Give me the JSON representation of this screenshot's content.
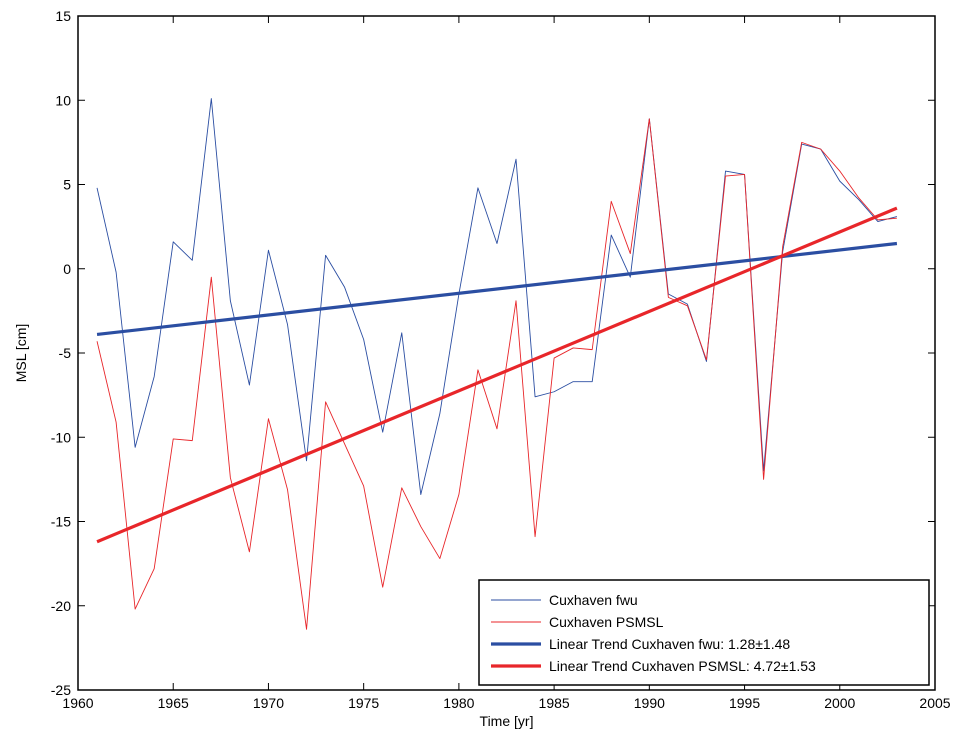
{
  "chart_data": {
    "type": "line",
    "title": "",
    "xlabel": "Time [yr]",
    "ylabel": "MSL [cm]",
    "xlim": [
      1960,
      2005
    ],
    "ylim": [
      -25,
      15
    ],
    "xticks": [
      1960,
      1965,
      1970,
      1975,
      1980,
      1985,
      1990,
      1995,
      2000,
      2005
    ],
    "yticks": [
      -25,
      -20,
      -15,
      -10,
      -5,
      0,
      5,
      10,
      15
    ],
    "grid": false,
    "legend_position": "bottom-right",
    "series": [
      {
        "name": "Cuxhaven fwu",
        "kind": "data",
        "color": "#2b4ea2",
        "x": [
          1961,
          1962,
          1963,
          1964,
          1965,
          1966,
          1967,
          1968,
          1969,
          1970,
          1971,
          1972,
          1973,
          1974,
          1975,
          1976,
          1977,
          1978,
          1979,
          1980,
          1981,
          1982,
          1983,
          1984,
          1985,
          1986,
          1987,
          1988,
          1989,
          1990,
          1991,
          1992,
          1993,
          1994,
          1995,
          1996,
          1997,
          1998,
          1999,
          2000,
          2001,
          2002,
          2003
        ],
        "y": [
          4.8,
          -0.2,
          -10.6,
          -6.4,
          1.6,
          0.5,
          10.1,
          -1.9,
          -6.9,
          1.1,
          -3.3,
          -11.4,
          0.8,
          -1.1,
          -4.2,
          -9.7,
          -3.8,
          -13.4,
          -8.6,
          -1.5,
          4.8,
          1.5,
          6.5,
          -7.6,
          -7.3,
          -6.7,
          -6.7,
          2.0,
          -0.5,
          8.9,
          -1.5,
          -2.1,
          -5.5,
          5.8,
          5.6,
          -12.0,
          1.0,
          7.4,
          7.1,
          5.2,
          4.1,
          2.8,
          3.1
        ]
      },
      {
        "name": "Cuxhaven PSMSL",
        "kind": "data",
        "color": "#e8262a",
        "x": [
          1961,
          1962,
          1963,
          1964,
          1965,
          1966,
          1967,
          1968,
          1969,
          1970,
          1971,
          1972,
          1973,
          1974,
          1975,
          1976,
          1977,
          1978,
          1979,
          1980,
          1981,
          1982,
          1983,
          1984,
          1985,
          1986,
          1987,
          1988,
          1989,
          1990,
          1991,
          1992,
          1993,
          1994,
          1995,
          1996,
          1997,
          1998,
          1999,
          2000,
          2001,
          2002,
          2003
        ],
        "y": [
          -4.3,
          -9.1,
          -20.2,
          -17.8,
          -10.1,
          -10.2,
          -0.5,
          -12.4,
          -16.8,
          -8.9,
          -13.1,
          -21.4,
          -7.9,
          -10.4,
          -12.9,
          -18.9,
          -13.0,
          -15.3,
          -17.2,
          -13.4,
          -6.0,
          -9.5,
          -1.9,
          -15.9,
          -5.3,
          -4.7,
          -4.8,
          4.0,
          0.9,
          8.9,
          -1.7,
          -2.2,
          -5.4,
          5.5,
          5.6,
          -12.5,
          1.3,
          7.5,
          7.1,
          5.8,
          4.2,
          2.9,
          3.0
        ]
      },
      {
        "name": "Linear Trend Cuxhaven fwu: 1.28±1.48",
        "kind": "trend",
        "color": "#2b4ea2",
        "x": [
          1961,
          2003
        ],
        "y": [
          -3.9,
          1.5
        ]
      },
      {
        "name": "Linear Trend Cuxhaven PSMSL: 4.72±1.53",
        "kind": "trend",
        "color": "#e8262a",
        "x": [
          1961,
          2003
        ],
        "y": [
          -16.2,
          3.6
        ]
      }
    ]
  }
}
